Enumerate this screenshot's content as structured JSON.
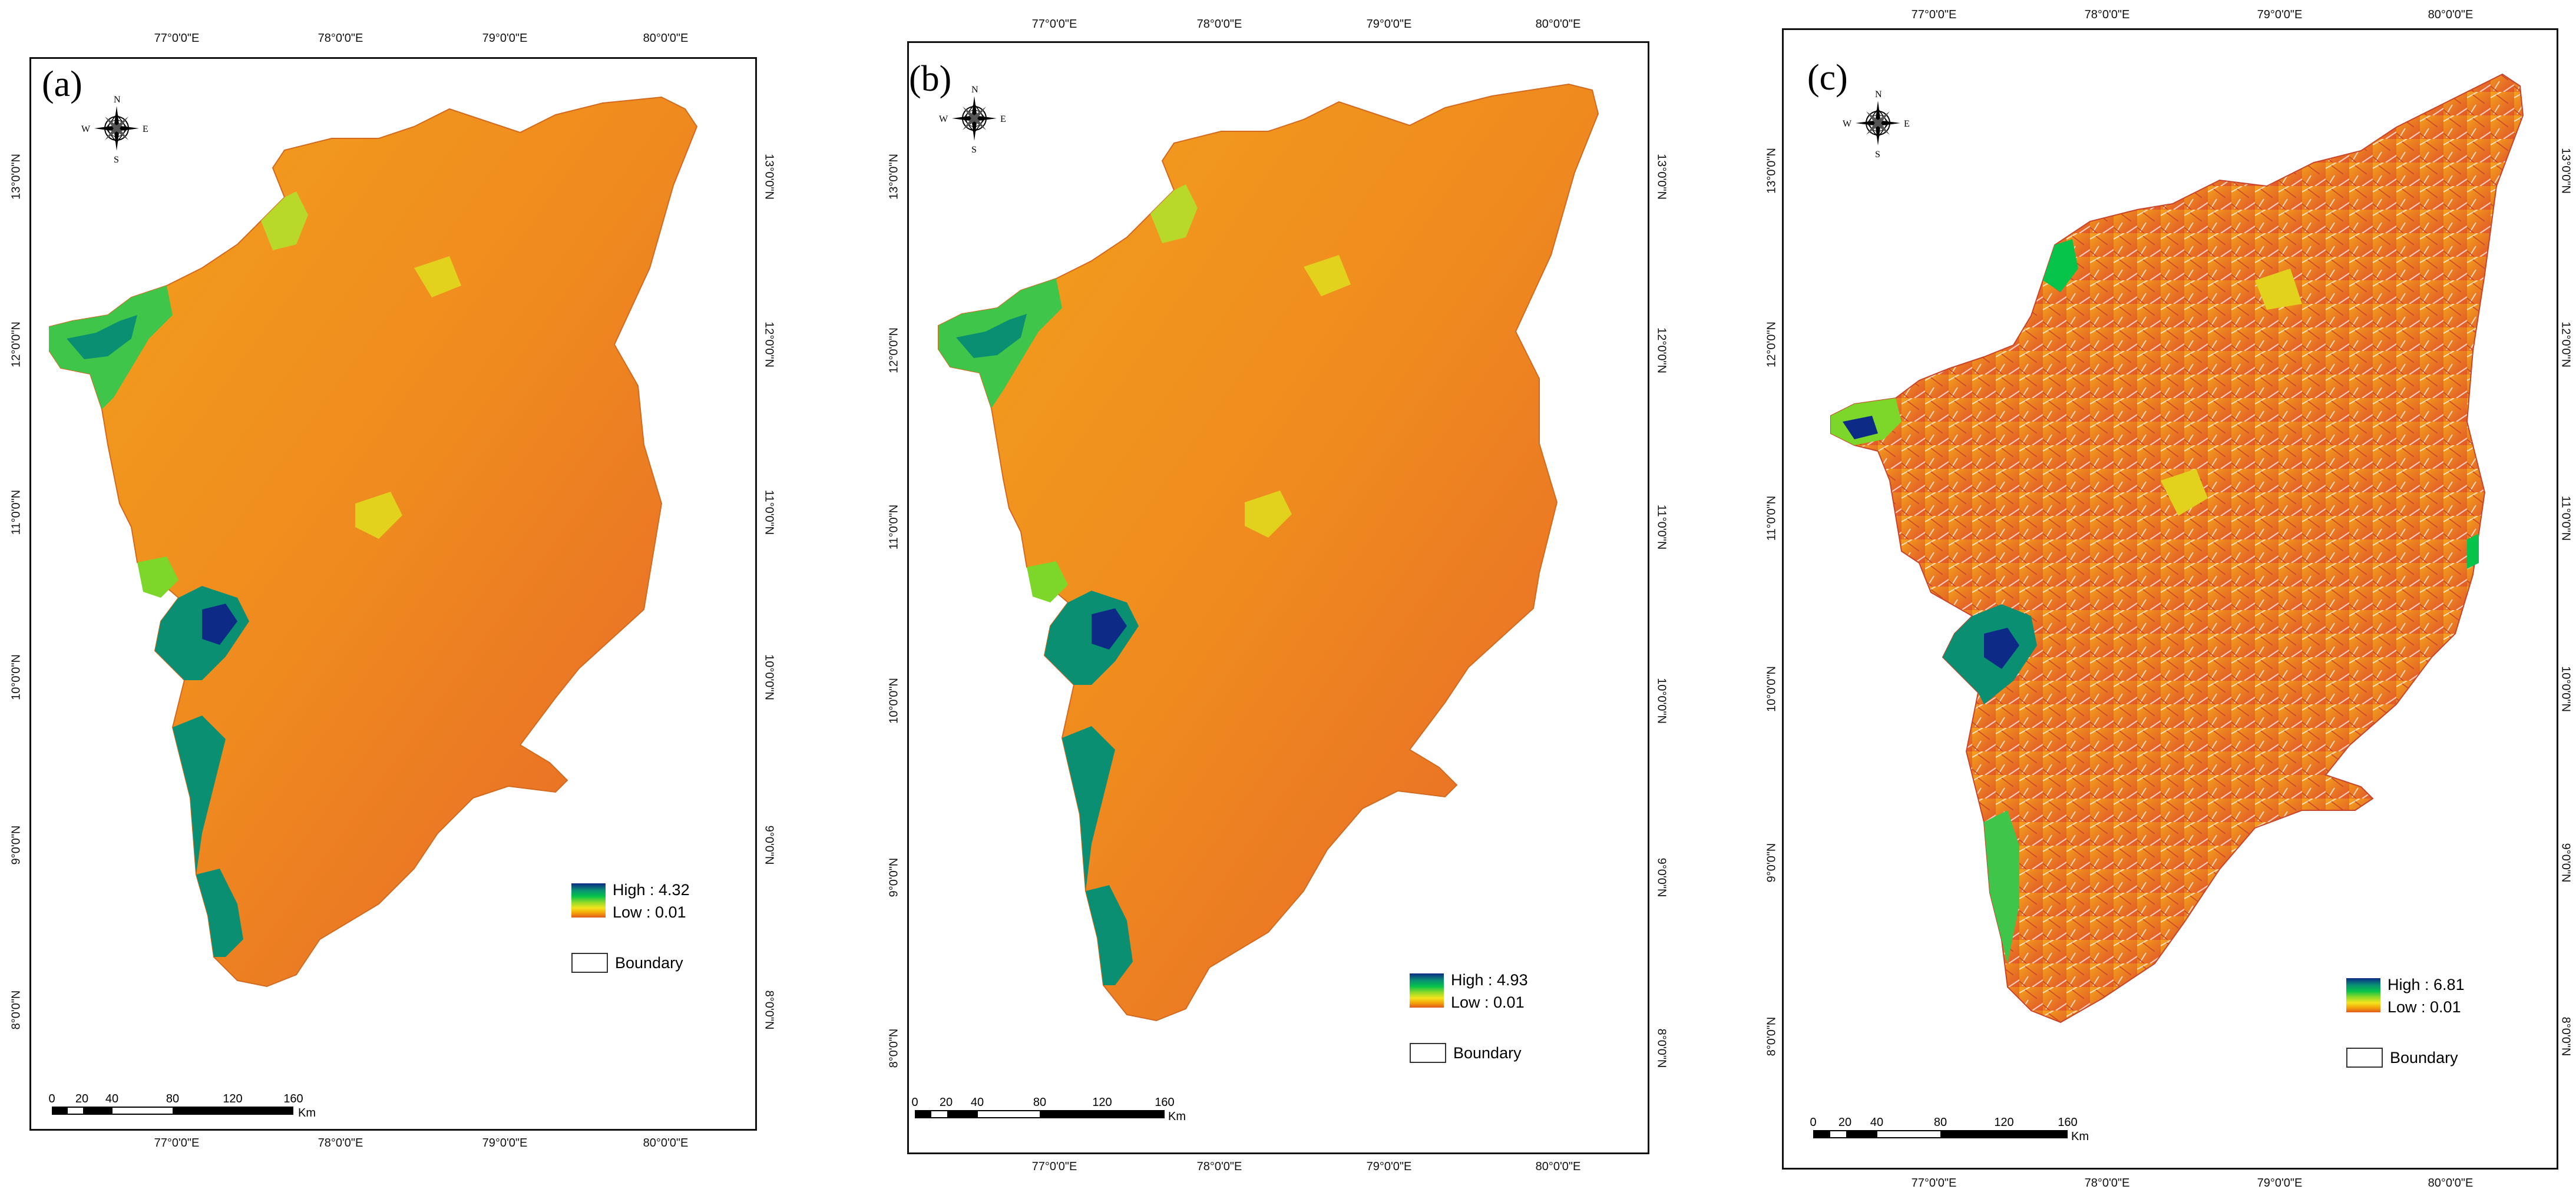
{
  "panels": [
    {
      "id": "a",
      "label": "(a)",
      "lon_ticks": [
        "77°0'0\"E",
        "78°0'0\"E",
        "79°0'0\"E",
        "80°0'0\"E"
      ],
      "lat_ticks": [
        "13°0'0\"N",
        "12°0'0\"N",
        "11°0'0\"N",
        "10°0'0\"N",
        "9°0'0\"N",
        "8°0'0\"N"
      ],
      "legend": {
        "high": "High : 4.32",
        "low": "Low : 0.01",
        "boundary": "Boundary"
      },
      "scale": {
        "labels": [
          "0",
          "20",
          "40",
          "80",
          "120",
          "160"
        ],
        "unit": "Km"
      },
      "compass": {
        "n": "N",
        "s": "S",
        "e": "E",
        "w": "W"
      }
    },
    {
      "id": "b",
      "label": "(b)",
      "lon_ticks": [
        "77°0'0\"E",
        "78°0'0\"E",
        "79°0'0\"E",
        "80°0'0\"E"
      ],
      "lat_ticks": [
        "13°0'0\"N",
        "12°0'0\"N",
        "11°0'0\"N",
        "10°0'0\"N",
        "9°0'0\"N",
        "8°0'0\"N"
      ],
      "legend": {
        "high": "High : 4.93",
        "low": "Low : 0.01",
        "boundary": "Boundary"
      },
      "scale": {
        "labels": [
          "0",
          "20",
          "40",
          "80",
          "120",
          "160"
        ],
        "unit": "Km"
      },
      "compass": {
        "n": "N",
        "s": "S",
        "e": "E",
        "w": "W"
      }
    },
    {
      "id": "c",
      "label": "(c)",
      "lon_ticks": [
        "77°0'0\"E",
        "78°0'0\"E",
        "79°0'0\"E",
        "80°0'0\"E"
      ],
      "lat_ticks": [
        "13°0'0\"N",
        "12°0'0\"N",
        "11°0'0\"N",
        "10°0'0\"N",
        "9°0'0\"N",
        "8°0'0\"N"
      ],
      "legend": {
        "high": "High : 6.81",
        "low": "Low : 0.01",
        "boundary": "Boundary"
      },
      "scale": {
        "labels": [
          "0",
          "20",
          "40",
          "80",
          "120",
          "160"
        ],
        "unit": "Km"
      },
      "compass": {
        "n": "N",
        "s": "S",
        "e": "E",
        "w": "W"
      }
    }
  ],
  "colors": {
    "high": "#0c2a86",
    "mid": "#06c34a",
    "yellow": "#f2e41c",
    "low": "#f08a1a",
    "low_dark": "#e25a1e"
  }
}
